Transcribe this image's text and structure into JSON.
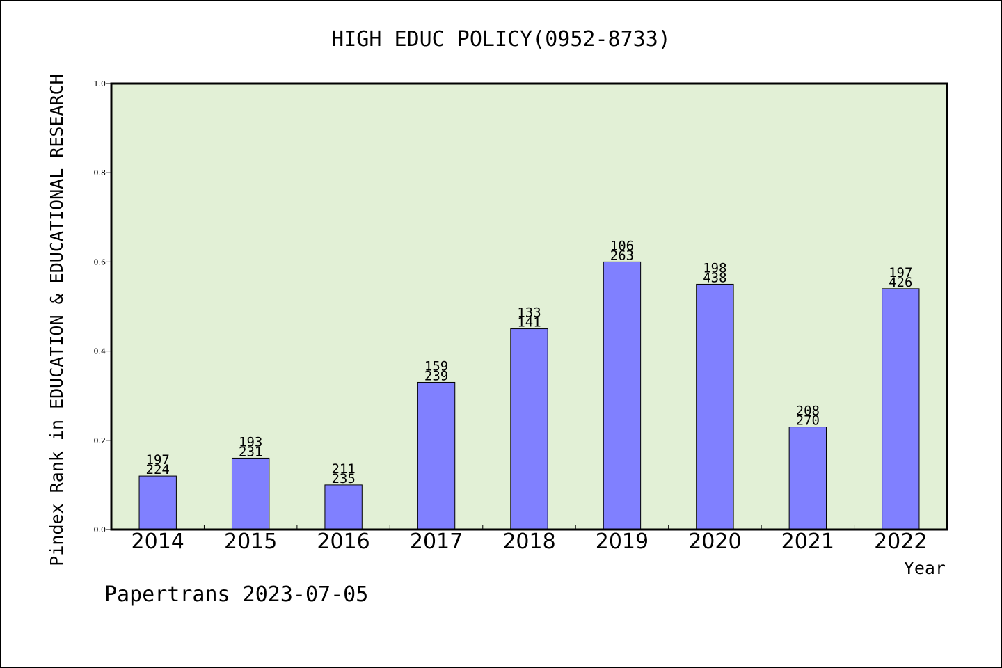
{
  "chart_data": {
    "type": "bar",
    "title": "HIGH EDUC POLICY(0952-8733)",
    "xlabel": "Year",
    "ylabel": "Pindex Rank in EDUCATION & EDUCATIONAL RESEARCH",
    "ylim": [
      0,
      1.0
    ],
    "yticks": [
      "0.0",
      "0.2",
      "0.4",
      "0.6",
      "0.8",
      "1.0"
    ],
    "categories": [
      "2014",
      "2015",
      "2016",
      "2017",
      "2018",
      "2019",
      "2020",
      "2021",
      "2022"
    ],
    "values": [
      0.12,
      0.16,
      0.1,
      0.33,
      0.45,
      0.6,
      0.55,
      0.23,
      0.54
    ],
    "label_top": [
      "197",
      "193",
      "211",
      "159",
      "133",
      "106",
      "198",
      "208",
      "197"
    ],
    "label_bottom": [
      "224",
      "231",
      "235",
      "239",
      "141",
      "263",
      "438",
      "270",
      "426"
    ],
    "grid": false,
    "legend": "none"
  },
  "footer": "Papertrans 2023-07-05",
  "colors": {
    "plot_bg": "#e2f0d6",
    "bar_fill": "#8080ff",
    "bar_stroke": "#000000",
    "text": "#000000"
  }
}
